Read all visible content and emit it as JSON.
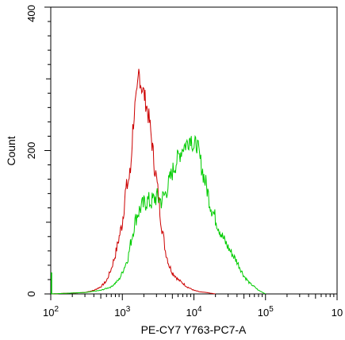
{
  "chart_data": {
    "type": "histogram",
    "xlabel": "PE-CY7 Y763-PC7-A",
    "ylabel": "Count",
    "x_scale": "log",
    "xlim": [
      100,
      1000000
    ],
    "ylim": [
      0,
      400
    ],
    "x_ticks": [
      {
        "value": 100,
        "base": "10",
        "exp": "2"
      },
      {
        "value": 1000,
        "base": "10",
        "exp": "3"
      },
      {
        "value": 10000,
        "base": "10",
        "exp": "4"
      },
      {
        "value": 100000,
        "base": "10",
        "exp": "5"
      },
      {
        "value": 1000000,
        "base": "10",
        "exp": ""
      }
    ],
    "y_ticks": [
      {
        "value": 0,
        "label": "0"
      },
      {
        "value": 200,
        "label": "200"
      },
      {
        "value": 400,
        "label": "400"
      }
    ],
    "series": [
      {
        "color": "#cc0000",
        "x": [
          100,
          300,
          400,
          500,
          600,
          700,
          800,
          1000,
          1100,
          1300,
          1400,
          1500,
          1600,
          1700,
          1800,
          1900,
          2000,
          2200,
          2400,
          2600,
          2800,
          3000,
          3500,
          4000,
          4500,
          5000,
          6000,
          7000,
          8000,
          10000,
          12000,
          15000,
          17000,
          20000
        ],
        "y": [
          0,
          2,
          5,
          10,
          18,
          35,
          55,
          100,
          140,
          170,
          230,
          260,
          275,
          310,
          295,
          285,
          280,
          260,
          240,
          210,
          180,
          160,
          100,
          60,
          40,
          30,
          20,
          15,
          10,
          5,
          3,
          2,
          1,
          0
        ]
      },
      {
        "color": "#00cc00",
        "x": [
          100,
          300,
          500,
          700,
          900,
          1000,
          1200,
          1300,
          1400,
          1500,
          1600,
          1800,
          2000,
          2200,
          2500,
          3000,
          3500,
          4000,
          5000,
          6000,
          7000,
          8000,
          9000,
          10000,
          11000,
          12000,
          13000,
          14000,
          15000,
          17000,
          20000,
          25000,
          30000,
          40000,
          50000,
          60000,
          70000,
          80000,
          100000
        ],
        "y": [
          0,
          2,
          5,
          10,
          20,
          30,
          50,
          70,
          85,
          100,
          110,
          120,
          125,
          130,
          128,
          135,
          130,
          140,
          170,
          190,
          205,
          210,
          220,
          205,
          210,
          190,
          175,
          160,
          150,
          125,
          105,
          80,
          65,
          45,
          25,
          15,
          10,
          5,
          0
        ]
      }
    ]
  }
}
